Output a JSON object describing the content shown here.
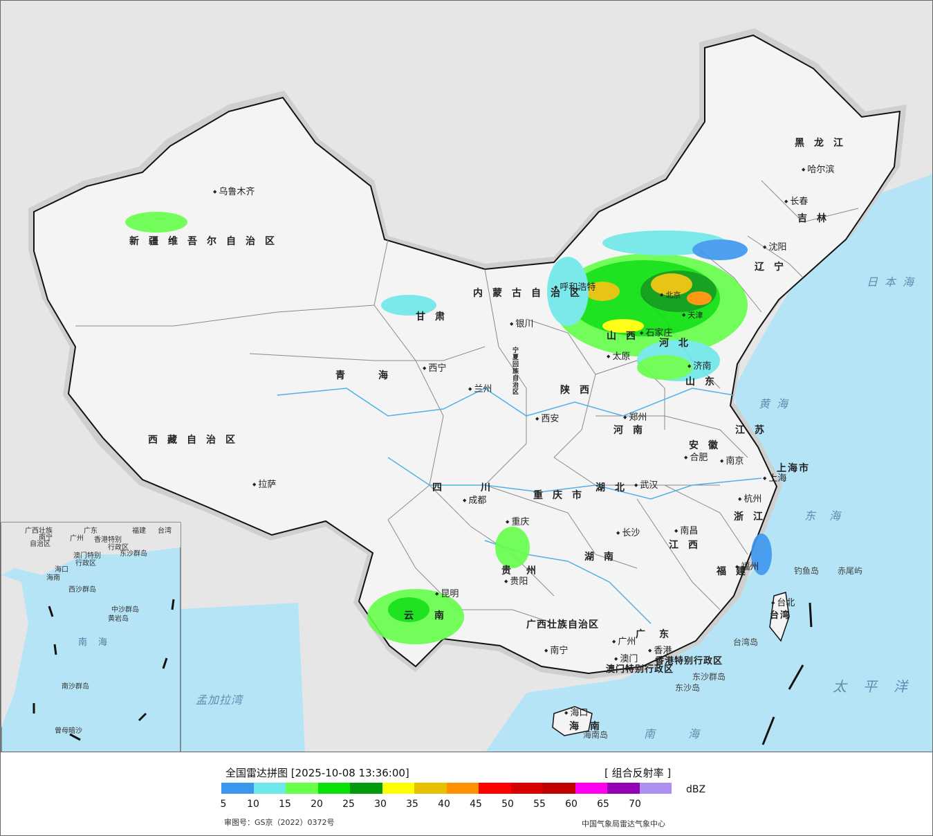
{
  "header": {
    "title": "全国雷达拼图 [2025-10-08 13:36:00]",
    "product": "[ 组合反射率 ]",
    "unit": "dBZ",
    "approval": "审图号：GS京（2022）0372号",
    "credit": "中国气象局雷达气象中心"
  },
  "legend": {
    "colors": [
      "#3d96ee",
      "#6ee8ea",
      "#66ff4a",
      "#09e10b",
      "#009a0c",
      "#ffff01",
      "#e6c100",
      "#ff9000",
      "#ff0000",
      "#d60000",
      "#c10000",
      "#ff00f0",
      "#9600b4",
      "#ad90f0"
    ],
    "ticks": [
      "5",
      "10",
      "15",
      "20",
      "25",
      "30",
      "35",
      "40",
      "45",
      "50",
      "55",
      "60",
      "65",
      "70"
    ]
  },
  "provinces": [
    "黑龙江",
    "吉林",
    "辽宁",
    "内蒙古自治区",
    "新疆维吾尔自治区",
    "西藏自治区",
    "青海",
    "甘肃",
    "宁夏回族自治区",
    "陕西",
    "山西",
    "河北",
    "山东",
    "河南",
    "江苏",
    "安徽",
    "上海市",
    "浙江",
    "湖北",
    "湖南",
    "江西",
    "福建",
    "四川",
    "重庆市",
    "贵州",
    "云南",
    "广西壮族自治区",
    "广东",
    "海南",
    "台湾",
    "香港特别行政区",
    "澳门特别行政区"
  ],
  "cities": [
    "哈尔滨",
    "长春",
    "沈阳",
    "乌鲁木齐",
    "呼和浩特",
    "银川",
    "西宁",
    "兰州",
    "西安",
    "太原",
    "石家庄",
    "济南",
    "郑州",
    "南京",
    "上海",
    "合肥",
    "杭州",
    "武汉",
    "南昌",
    "长沙",
    "福州",
    "台北",
    "成都",
    "重庆",
    "贵阳",
    "昆明",
    "南宁",
    "广州",
    "香港",
    "澳门",
    "海口",
    "拉萨",
    "天津",
    "北京"
  ],
  "islands": [
    "钓鱼岛",
    "赤尾屿",
    "台湾岛",
    "东沙群岛",
    "东沙岛",
    "海南岛"
  ],
  "seas": [
    "日本海",
    "黄海",
    "东海",
    "太平洋",
    "南海",
    "孟加拉湾"
  ],
  "inset": {
    "labels": [
      "广西壮族",
      "自治区",
      "广东",
      "福建",
      "台湾",
      "南宁",
      "广州",
      "香港特别",
      "行政区",
      "澳门特别",
      "行政区",
      "东沙群岛",
      "海口",
      "海南",
      "西沙群岛",
      "中沙群岛",
      "黄岩岛",
      "南海",
      "南沙群岛",
      "曾母暗沙"
    ]
  }
}
